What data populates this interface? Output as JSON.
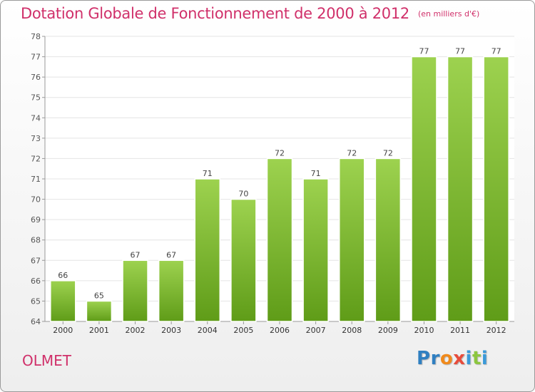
{
  "header": {
    "title": "Dotation Globale de Fonctionnement de 2000 à 2012",
    "subtitle": "(en milliers d'€)"
  },
  "footer": {
    "place": "OLMET",
    "brand": "Proxiti"
  },
  "colors": {
    "title": "#d0306a",
    "bar_top": "#9dd24f",
    "bar_bottom": "#5f9c18",
    "grid": "#e4e4e4"
  },
  "chart_data": {
    "type": "bar",
    "title": "Dotation Globale de Fonctionnement de 2000 à 2012",
    "subtitle": "(en milliers d'€)",
    "xlabel": "",
    "ylabel": "",
    "categories": [
      "2000",
      "2001",
      "2002",
      "2003",
      "2004",
      "2005",
      "2006",
      "2007",
      "2008",
      "2009",
      "2010",
      "2011",
      "2012"
    ],
    "values": [
      66,
      65,
      67,
      67,
      71,
      70,
      72,
      71,
      72,
      72,
      77,
      77,
      77
    ],
    "y_ticks": [
      {
        "value": 64,
        "label": "64"
      },
      {
        "value": 65,
        "label": "65"
      },
      {
        "value": 66,
        "label": "66"
      },
      {
        "value": 67,
        "label": "67"
      },
      {
        "value": 68,
        "label": "68"
      },
      {
        "value": 69,
        "label": "69"
      },
      {
        "value": 70,
        "label": "70"
      },
      {
        "value": 71,
        "label": "71"
      },
      {
        "value": 72,
        "label": "72"
      },
      {
        "value": 73,
        "label": "73"
      },
      {
        "value": 74,
        "label": "74"
      },
      {
        "value": 75,
        "label": "75"
      },
      {
        "value": 76,
        "label": "76"
      },
      {
        "value": 77,
        "label": "77"
      },
      {
        "value": 78,
        "label": "78"
      }
    ],
    "ylim": [
      64,
      78
    ],
    "grid": true,
    "legend": "none"
  }
}
